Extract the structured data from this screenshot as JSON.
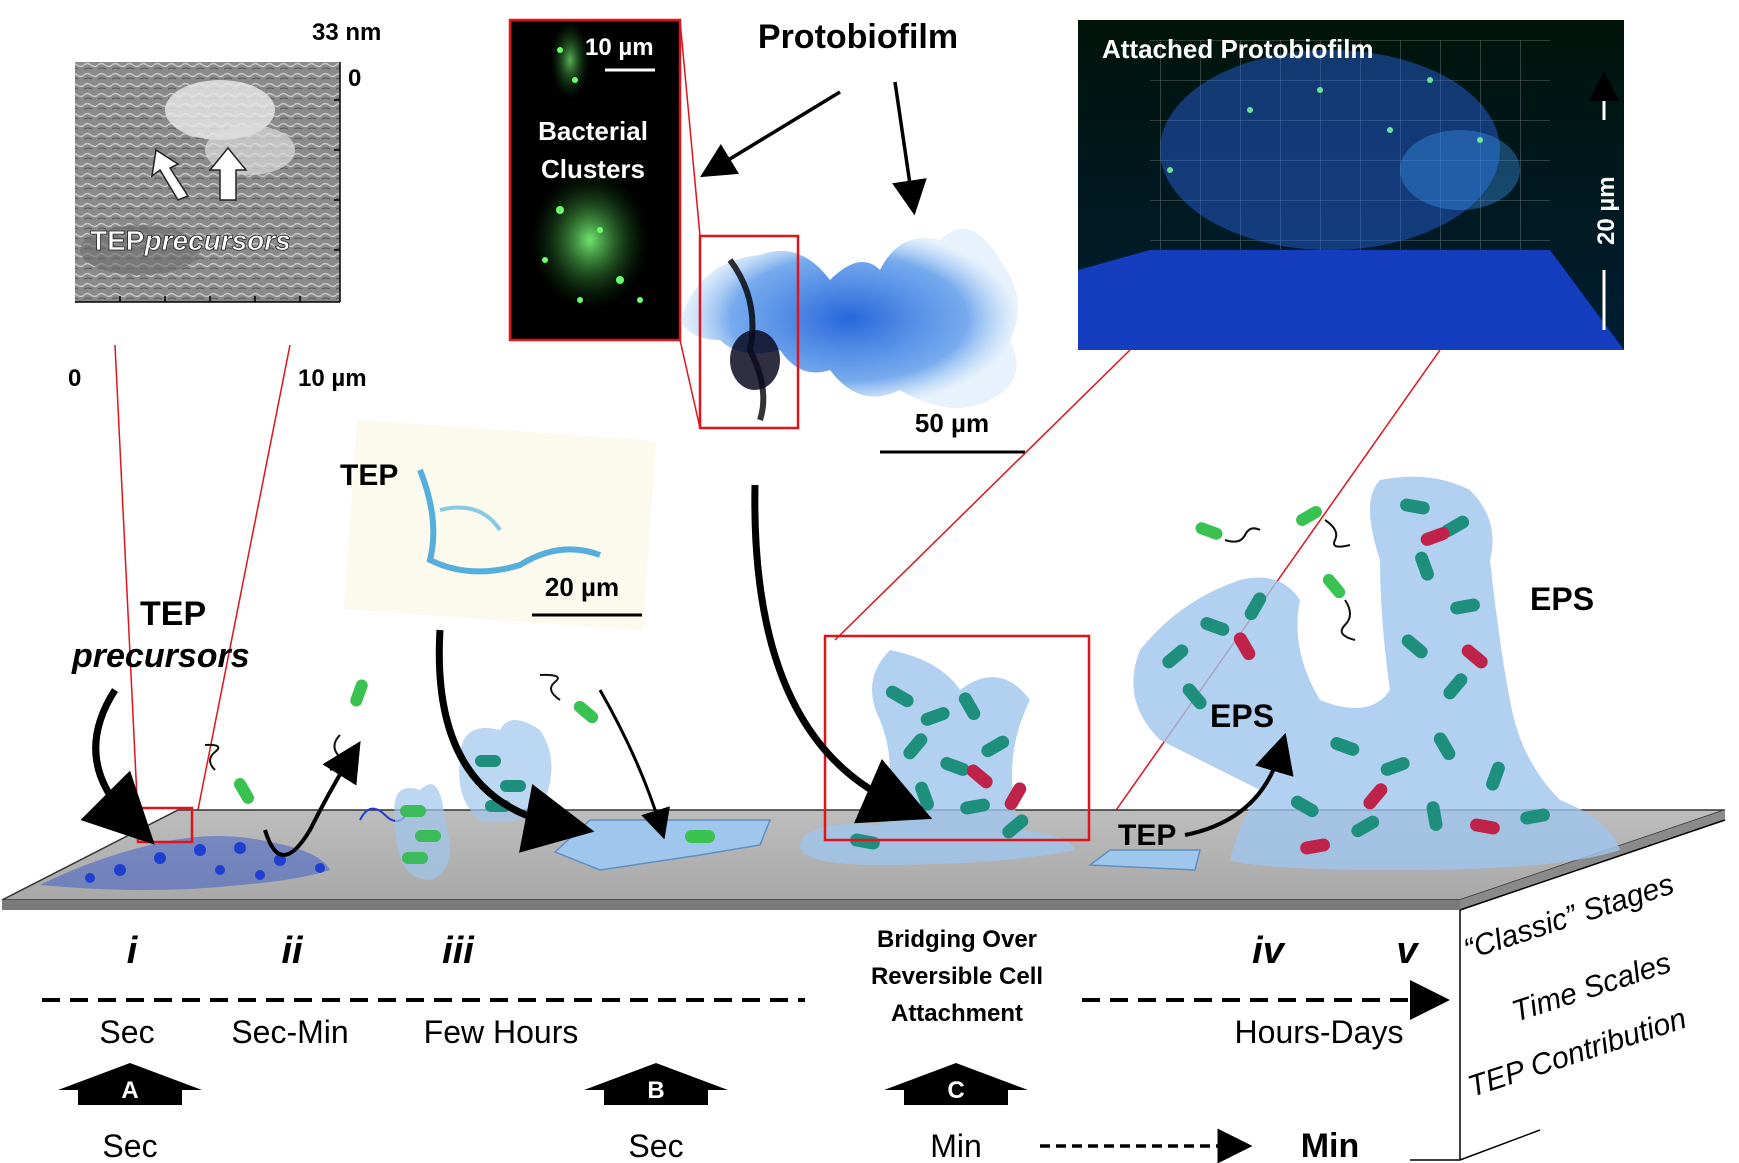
{
  "afm": {
    "z_max": "33 nm",
    "z_min": "0",
    "x_min": "0",
    "x_max": "10 µm",
    "tep_text": "TEP",
    "precursors_text": "precursors"
  },
  "fluorescence": {
    "scale": "10 µm",
    "clusters_line1": "Bacterial",
    "clusters_line2": "Clusters"
  },
  "protobiofilm": {
    "title": "Protobiofilm",
    "scale": "50 µm"
  },
  "confocal": {
    "title": "Attached Protobiofilm",
    "scale": "20 µm"
  },
  "tep_image": {
    "title": "TEP",
    "scale": "20 µm"
  },
  "surface_labels": {
    "tep_precursors_line1": "TEP",
    "tep_precursors_line2": "precursors",
    "eps_small": "EPS",
    "eps_large": "EPS",
    "tep_surface": "TEP"
  },
  "stages": [
    "i",
    "ii",
    "iii",
    "iv",
    "v"
  ],
  "bridging": {
    "line1": "Bridging Over",
    "line2": "Reversible Cell",
    "line3": "Attachment"
  },
  "time_scales": {
    "sec": "Sec",
    "sec_min": "Sec-Min",
    "few_hours": "Few Hours",
    "hours_days": "Hours-Days"
  },
  "tep_contribution": [
    {
      "letter": "A",
      "time": "Sec"
    },
    {
      "letter": "B",
      "time": "Sec"
    },
    {
      "letter": "C",
      "time": "Min"
    }
  ],
  "final_contribution": "Min",
  "side_labels": {
    "classic": "“Classic” Stages",
    "time": "Time Scales",
    "tep": "TEP Contribution"
  },
  "colors": {
    "bacteria_teal": "#1f8f7d",
    "bacteria_red": "#c0234a",
    "bacteria_green": "#39c24f",
    "eps_blue": "#9fc6ec",
    "highlight_red": "#e0141c",
    "fluor_green": "#2ee34a",
    "confocal_blue": "#1744d8"
  }
}
